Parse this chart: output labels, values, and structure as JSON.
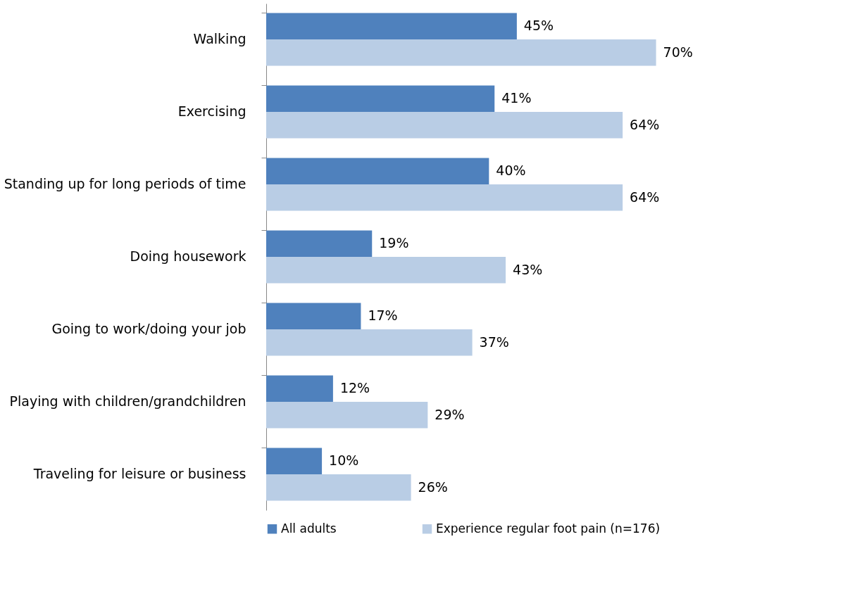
{
  "chart_data": {
    "type": "bar",
    "orientation": "horizontal",
    "legend": "bottom",
    "categories": [
      "Walking",
      "Exercising",
      "Standing up for long periods of time",
      "Doing housework",
      "Going to work/doing your job",
      "Playing with children/grandchildren",
      "Traveling for leisure or business"
    ],
    "series": [
      {
        "name": "All adults",
        "color": "#4f81bd",
        "values": [
          45,
          41,
          40,
          19,
          17,
          12,
          10
        ],
        "value_labels": [
          "45%",
          "41%",
          "40%",
          "19%",
          "17%",
          "12%",
          "10%"
        ]
      },
      {
        "name": "Experience regular foot pain (n=176)",
        "color": "#b9cde5",
        "values": [
          70,
          64,
          64,
          43,
          37,
          29,
          26
        ],
        "value_labels": [
          "70%",
          "64%",
          "64%",
          "43%",
          "37%",
          "29%",
          "26%"
        ]
      }
    ]
  }
}
